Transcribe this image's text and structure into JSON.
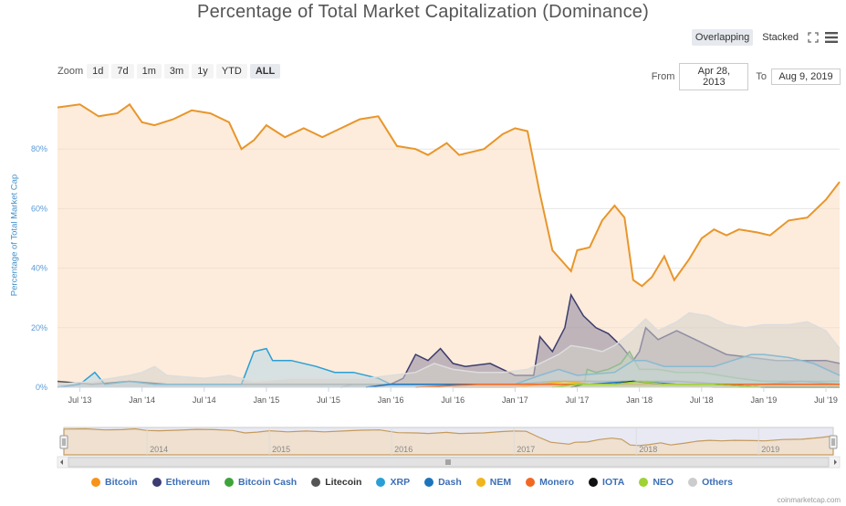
{
  "title": "Percentage of Total Market Capitalization (Dominance)",
  "toolbar": {
    "overlapping": "Overlapping",
    "stacked": "Stacked"
  },
  "zoom": {
    "label": "Zoom",
    "buttons": [
      "1d",
      "7d",
      "1m",
      "3m",
      "1y",
      "YTD",
      "ALL"
    ],
    "active": "ALL"
  },
  "range": {
    "from_label": "From",
    "from": "Apr 28, 2013",
    "to_label": "To",
    "to": "Aug 9, 2019"
  },
  "ylabel": "Percentage of Total Market Cap",
  "credit": "coinmarketcap.com",
  "chart_data": {
    "type": "area",
    "ylim": [
      0,
      100
    ],
    "y_ticks": [
      "0%",
      "20%",
      "40%",
      "60%",
      "80%"
    ],
    "x_ticks": [
      "Jul '13",
      "Jan '14",
      "Jul '14",
      "Jan '15",
      "Jul '15",
      "Jan '16",
      "Jul '16",
      "Jan '17",
      "Jul '17",
      "Jan '18",
      "Jul '18",
      "Jan '19",
      "Jul '19"
    ],
    "navigator_ticks": [
      "2014",
      "2015",
      "2016",
      "2017",
      "2018",
      "2019"
    ],
    "x_start": 2013.32,
    "x_end": 2019.61,
    "series": [
      {
        "name": "Bitcoin",
        "color": "#f7931a",
        "fill": "#fcdcbd",
        "stroke": "#e8962b",
        "points": [
          [
            2013.32,
            94
          ],
          [
            2013.5,
            95
          ],
          [
            2013.65,
            91
          ],
          [
            2013.8,
            92
          ],
          [
            2013.9,
            95
          ],
          [
            2014.0,
            89
          ],
          [
            2014.1,
            88
          ],
          [
            2014.25,
            90
          ],
          [
            2014.4,
            93
          ],
          [
            2014.55,
            92
          ],
          [
            2014.7,
            89
          ],
          [
            2014.8,
            80
          ],
          [
            2014.9,
            83
          ],
          [
            2015.0,
            88
          ],
          [
            2015.15,
            84
          ],
          [
            2015.3,
            87
          ],
          [
            2015.45,
            84
          ],
          [
            2015.6,
            87
          ],
          [
            2015.75,
            90
          ],
          [
            2015.9,
            91
          ],
          [
            2016.05,
            81
          ],
          [
            2016.2,
            80
          ],
          [
            2016.3,
            78
          ],
          [
            2016.45,
            82
          ],
          [
            2016.55,
            78
          ],
          [
            2016.75,
            80
          ],
          [
            2016.9,
            85
          ],
          [
            2017.0,
            87
          ],
          [
            2017.1,
            86
          ],
          [
            2017.2,
            65
          ],
          [
            2017.3,
            46
          ],
          [
            2017.45,
            39
          ],
          [
            2017.5,
            46
          ],
          [
            2017.6,
            47
          ],
          [
            2017.7,
            56
          ],
          [
            2017.8,
            61
          ],
          [
            2017.88,
            57
          ],
          [
            2017.95,
            36
          ],
          [
            2018.02,
            34
          ],
          [
            2018.1,
            37
          ],
          [
            2018.2,
            44
          ],
          [
            2018.28,
            36
          ],
          [
            2018.4,
            43
          ],
          [
            2018.5,
            50
          ],
          [
            2018.6,
            53
          ],
          [
            2018.7,
            51
          ],
          [
            2018.8,
            53
          ],
          [
            2018.95,
            52
          ],
          [
            2019.05,
            51
          ],
          [
            2019.2,
            56
          ],
          [
            2019.35,
            57
          ],
          [
            2019.5,
            63
          ],
          [
            2019.61,
            69
          ]
        ]
      },
      {
        "name": "Ethereum",
        "color": "#3c3c70",
        "fill": "#8c879c",
        "stroke": "#3c3c70",
        "points": [
          [
            2015.6,
            0
          ],
          [
            2015.7,
            1
          ],
          [
            2016.0,
            1
          ],
          [
            2016.1,
            3
          ],
          [
            2016.2,
            11
          ],
          [
            2016.3,
            9
          ],
          [
            2016.4,
            13
          ],
          [
            2016.5,
            8
          ],
          [
            2016.6,
            7
          ],
          [
            2016.8,
            8
          ],
          [
            2016.9,
            6
          ],
          [
            2017.0,
            4
          ],
          [
            2017.15,
            4
          ],
          [
            2017.2,
            17
          ],
          [
            2017.3,
            12
          ],
          [
            2017.4,
            20
          ],
          [
            2017.45,
            31
          ],
          [
            2017.55,
            24
          ],
          [
            2017.65,
            20
          ],
          [
            2017.75,
            18
          ],
          [
            2017.85,
            14
          ],
          [
            2017.95,
            9
          ],
          [
            2018.0,
            12
          ],
          [
            2018.05,
            20
          ],
          [
            2018.15,
            16
          ],
          [
            2018.3,
            19
          ],
          [
            2018.45,
            16
          ],
          [
            2018.55,
            14
          ],
          [
            2018.7,
            11
          ],
          [
            2018.9,
            10
          ],
          [
            2019.1,
            9
          ],
          [
            2019.3,
            9
          ],
          [
            2019.5,
            9
          ],
          [
            2019.61,
            8
          ]
        ]
      },
      {
        "name": "Bitcoin Cash",
        "color": "#3fa33c",
        "fill": "#b4d8ae",
        "stroke": "#3fa33c",
        "points": [
          [
            2017.55,
            0
          ],
          [
            2017.58,
            6
          ],
          [
            2017.65,
            5
          ],
          [
            2017.75,
            6
          ],
          [
            2017.85,
            8
          ],
          [
            2017.92,
            12
          ],
          [
            2018.0,
            6
          ],
          [
            2018.15,
            6
          ],
          [
            2018.3,
            5
          ],
          [
            2018.5,
            5
          ],
          [
            2018.8,
            3
          ],
          [
            2019.0,
            2
          ],
          [
            2019.3,
            2
          ],
          [
            2019.61,
            2
          ]
        ]
      },
      {
        "name": "Litecoin",
        "color": "#555555",
        "fill": "#bbbbbb",
        "stroke": "#555555",
        "points": [
          [
            2013.32,
            2
          ],
          [
            2013.6,
            1
          ],
          [
            2013.9,
            2
          ],
          [
            2014.2,
            1
          ],
          [
            2014.6,
            1
          ],
          [
            2015.0,
            1
          ],
          [
            2015.5,
            1
          ],
          [
            2016.0,
            1
          ],
          [
            2016.5,
            1
          ],
          [
            2017.0,
            1
          ],
          [
            2017.3,
            2
          ],
          [
            2017.6,
            2
          ],
          [
            2017.95,
            2
          ],
          [
            2018.3,
            2
          ],
          [
            2018.7,
            1
          ],
          [
            2019.0,
            1
          ],
          [
            2019.3,
            2
          ],
          [
            2019.61,
            1
          ]
        ]
      },
      {
        "name": "XRP",
        "color": "#2a9fd6",
        "fill": "#b8d9e6",
        "stroke": "#2a9fd6",
        "points": [
          [
            2013.32,
            0
          ],
          [
            2013.5,
            1
          ],
          [
            2013.62,
            5
          ],
          [
            2013.7,
            1
          ],
          [
            2013.9,
            2
          ],
          [
            2014.1,
            1
          ],
          [
            2014.5,
            1
          ],
          [
            2014.8,
            1
          ],
          [
            2014.9,
            12
          ],
          [
            2015.0,
            13
          ],
          [
            2015.05,
            9
          ],
          [
            2015.2,
            9
          ],
          [
            2015.4,
            7
          ],
          [
            2015.55,
            5
          ],
          [
            2015.7,
            5
          ],
          [
            2015.9,
            3
          ],
          [
            2016.0,
            1
          ],
          [
            2016.5,
            1
          ],
          [
            2017.0,
            1
          ],
          [
            2017.2,
            4
          ],
          [
            2017.35,
            6
          ],
          [
            2017.5,
            4
          ],
          [
            2017.8,
            5
          ],
          [
            2017.95,
            9
          ],
          [
            2018.05,
            9
          ],
          [
            2018.2,
            7
          ],
          [
            2018.4,
            7
          ],
          [
            2018.6,
            7
          ],
          [
            2018.75,
            9
          ],
          [
            2018.9,
            11
          ],
          [
            2019.0,
            11
          ],
          [
            2019.2,
            10
          ],
          [
            2019.4,
            8
          ],
          [
            2019.61,
            4
          ]
        ]
      },
      {
        "name": "Others",
        "color": "#cccccc",
        "fill": "#d4d1cc",
        "stroke": "#dddddd",
        "points": [
          [
            2013.32,
            1
          ],
          [
            2013.6,
            2
          ],
          [
            2013.9,
            4
          ],
          [
            2014.0,
            5
          ],
          [
            2014.1,
            7
          ],
          [
            2014.2,
            4
          ],
          [
            2014.5,
            3
          ],
          [
            2014.7,
            4
          ],
          [
            2014.9,
            2
          ],
          [
            2015.2,
            3
          ],
          [
            2015.5,
            3
          ],
          [
            2015.8,
            3
          ],
          [
            2016.0,
            4
          ],
          [
            2016.2,
            5
          ],
          [
            2016.35,
            8
          ],
          [
            2016.5,
            6
          ],
          [
            2016.7,
            5
          ],
          [
            2016.9,
            5
          ],
          [
            2017.1,
            6
          ],
          [
            2017.25,
            9
          ],
          [
            2017.35,
            11
          ],
          [
            2017.45,
            14
          ],
          [
            2017.6,
            13
          ],
          [
            2017.7,
            12
          ],
          [
            2017.8,
            14
          ],
          [
            2017.95,
            19
          ],
          [
            2018.05,
            23
          ],
          [
            2018.15,
            19
          ],
          [
            2018.3,
            22
          ],
          [
            2018.4,
            25
          ],
          [
            2018.55,
            24
          ],
          [
            2018.7,
            21
          ],
          [
            2018.85,
            20
          ],
          [
            2019.0,
            21
          ],
          [
            2019.2,
            21
          ],
          [
            2019.35,
            22
          ],
          [
            2019.5,
            19
          ],
          [
            2019.61,
            13
          ]
        ]
      },
      {
        "name": "Dash",
        "color": "#1c75bc",
        "fill": "#b4cde3",
        "stroke": "#1c75bc",
        "points": [
          [
            2015.8,
            0
          ],
          [
            2016.0,
            1
          ],
          [
            2016.5,
            1
          ],
          [
            2017.0,
            1
          ],
          [
            2017.3,
            1
          ],
          [
            2017.6,
            1
          ],
          [
            2017.95,
            2
          ],
          [
            2018.3,
            1
          ],
          [
            2018.7,
            1
          ],
          [
            2019.0,
            1
          ],
          [
            2019.61,
            1
          ]
        ]
      },
      {
        "name": "NEM",
        "color": "#f0b51b",
        "fill": "#f6dd9c",
        "stroke": "#f0b51b",
        "points": [
          [
            2016.5,
            0
          ],
          [
            2017.0,
            0
          ],
          [
            2017.2,
            1
          ],
          [
            2017.4,
            2
          ],
          [
            2017.6,
            1
          ],
          [
            2017.95,
            1
          ],
          [
            2018.2,
            1
          ],
          [
            2018.6,
            0
          ],
          [
            2019.0,
            0
          ],
          [
            2019.61,
            0
          ]
        ]
      },
      {
        "name": "Monero",
        "color": "#f26822",
        "fill": "#f9c4a3",
        "stroke": "#f26822",
        "points": [
          [
            2016.2,
            0
          ],
          [
            2016.7,
            1
          ],
          [
            2017.0,
            1
          ],
          [
            2017.5,
            1
          ],
          [
            2018.0,
            1
          ],
          [
            2018.5,
            1
          ],
          [
            2019.0,
            1
          ],
          [
            2019.61,
            1
          ]
        ]
      },
      {
        "name": "IOTA",
        "color": "#111111",
        "fill": "#999999",
        "stroke": "#111111",
        "points": [
          [
            2017.45,
            0
          ],
          [
            2017.55,
            1
          ],
          [
            2017.8,
            1
          ],
          [
            2017.95,
            2
          ],
          [
            2018.2,
            1
          ],
          [
            2018.6,
            1
          ],
          [
            2019.0,
            0
          ],
          [
            2019.61,
            0
          ]
        ]
      },
      {
        "name": "NEO",
        "color": "#9ed235",
        "fill": "#d7ecab",
        "stroke": "#9ed235",
        "points": [
          [
            2017.3,
            0
          ],
          [
            2017.5,
            1
          ],
          [
            2017.8,
            1
          ],
          [
            2018.0,
            2
          ],
          [
            2018.2,
            1
          ],
          [
            2018.6,
            1
          ],
          [
            2019.0,
            0
          ],
          [
            2019.61,
            0
          ]
        ]
      }
    ]
  }
}
